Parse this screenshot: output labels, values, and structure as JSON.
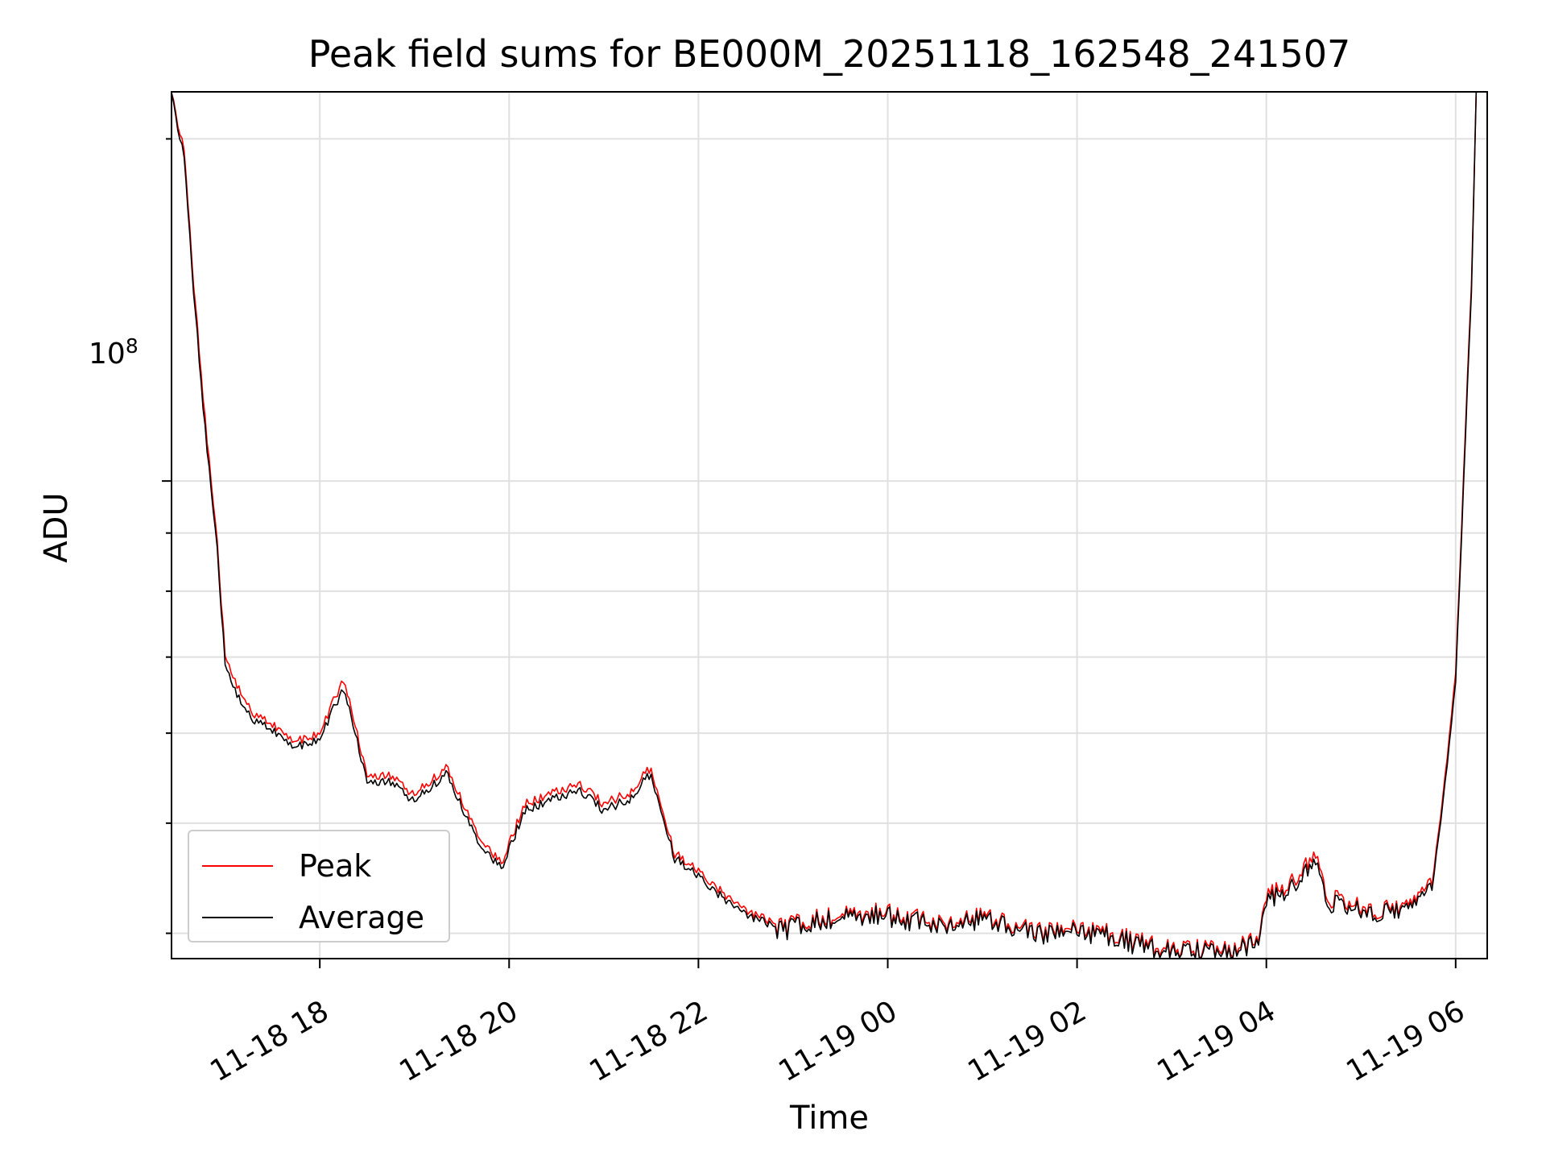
{
  "chart_data": {
    "type": "line",
    "title": "Peak field sums for BE000M_20251118_162548_241507",
    "xlabel": "Time",
    "ylabel": "ADU",
    "yscale": "log",
    "grid": true,
    "legend_position": "lower-left",
    "xlim": [
      "2025-11-18 16:26",
      "2025-11-19 06:20"
    ],
    "ylim": [
      38000000,
      220000000
    ],
    "x_ticks": [
      "11-18 18",
      "11-18 20",
      "11-18 22",
      "11-19 00",
      "11-19 02",
      "11-19 04",
      "11-19 06"
    ],
    "y_tick_label": {
      "base": "10",
      "exponent": "8"
    },
    "x": [
      "2025-11-18 16:26",
      "2025-11-18 16:34",
      "2025-11-18 16:40",
      "2025-11-18 16:46",
      "2025-11-18 16:55",
      "2025-11-18 17:00",
      "2025-11-18 17:10",
      "2025-11-18 17:20",
      "2025-11-18 17:30",
      "2025-11-18 17:45",
      "2025-11-18 18:00",
      "2025-11-18 18:15",
      "2025-11-18 18:30",
      "2025-11-18 18:45",
      "2025-11-18 19:00",
      "2025-11-18 19:20",
      "2025-11-18 19:40",
      "2025-11-18 19:55",
      "2025-11-18 20:10",
      "2025-11-18 20:25",
      "2025-11-18 20:45",
      "2025-11-18 21:00",
      "2025-11-18 21:15",
      "2025-11-18 21:30",
      "2025-11-18 21:45",
      "2025-11-18 21:55",
      "2025-11-18 22:10",
      "2025-11-18 22:30",
      "2025-11-18 22:50",
      "2025-11-18 23:00",
      "2025-11-18 23:15",
      "2025-11-18 23:35",
      "2025-11-18 23:50",
      "2025-11-19 00:10",
      "2025-11-19 00:25",
      "2025-11-19 00:45",
      "2025-11-19 01:00",
      "2025-11-19 01:15",
      "2025-11-19 01:30",
      "2025-11-19 01:45",
      "2025-11-19 02:00",
      "2025-11-19 02:20",
      "2025-11-19 02:35",
      "2025-11-19 02:50",
      "2025-11-19 03:10",
      "2025-11-19 03:25",
      "2025-11-19 03:40",
      "2025-11-19 03:55",
      "2025-11-19 04:00",
      "2025-11-19 04:15",
      "2025-11-19 04:30",
      "2025-11-19 04:40",
      "2025-11-19 04:55",
      "2025-11-19 05:10",
      "2025-11-19 05:25",
      "2025-11-19 05:35",
      "2025-11-19 05:45",
      "2025-11-19 05:52",
      "2025-11-19 06:00",
      "2025-11-19 06:10",
      "2025-11-19 06:13"
    ],
    "series": [
      {
        "name": "Peak",
        "color": "#ff0000",
        "values": [
          220000000,
          195000000,
          150000000,
          118000000,
          88000000,
          70000000,
          65000000,
          62000000,
          61000000,
          59000000,
          60000000,
          67000000,
          55000000,
          55000000,
          53000000,
          56000000,
          49000000,
          46000000,
          52000000,
          53000000,
          54000000,
          52000000,
          53000000,
          56000000,
          47000000,
          46000000,
          44000000,
          42000000,
          40500000,
          40600000,
          41200000,
          41500000,
          41800000,
          41400000,
          41000000,
          40800000,
          41600000,
          40900000,
          40300000,
          40100000,
          40300000,
          40000000,
          39400000,
          39000000,
          38800000,
          38600000,
          38500000,
          40000000,
          43000000,
          44000000,
          47000000,
          43000000,
          42500000,
          42000000,
          42300000,
          43000000,
          44500000,
          53000000,
          68000000,
          150000000,
          220000000
        ]
      },
      {
        "name": "Average",
        "color": "#000000",
        "values": [
          220000000,
          193000000,
          148000000,
          116000000,
          87000000,
          69000000,
          64000000,
          61500000,
          60500000,
          58500000,
          59500000,
          66000000,
          54500000,
          54500000,
          52500000,
          55500000,
          48500000,
          45700000,
          51500000,
          52500000,
          53500000,
          51500000,
          52500000,
          55500000,
          46700000,
          45700000,
          43700000,
          41800000,
          40400000,
          40500000,
          41100000,
          41400000,
          41700000,
          41300000,
          40900000,
          40700000,
          41500000,
          40800000,
          40200000,
          40000000,
          40200000,
          39900000,
          39300000,
          38900000,
          38700000,
          38500000,
          38400000,
          39900000,
          42700000,
          43700000,
          46500000,
          42700000,
          42300000,
          41900000,
          42200000,
          42800000,
          44200000,
          52500000,
          67000000,
          148000000,
          220000000
        ]
      }
    ]
  }
}
